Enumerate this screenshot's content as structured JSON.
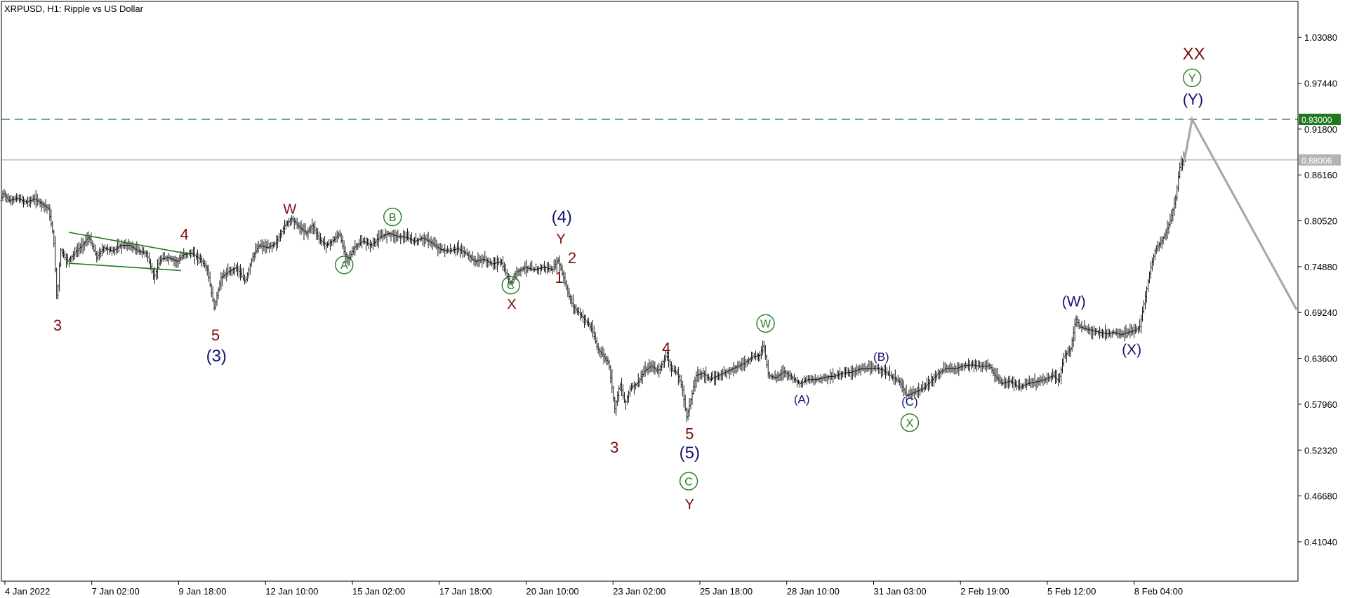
{
  "chart_data": {
    "type": "ohlc",
    "title": "XRPUSD, H1:  Ripple vs US Dollar",
    "symbol": "XRPUSD",
    "timeframe": "H1",
    "instrument": "Ripple vs US Dollar",
    "ylim": [
      0.362,
      1.075
    ],
    "y_ticks": [
      "1.03080",
      "0.97440",
      "0.91800",
      "0.86160",
      "0.80520",
      "0.74880",
      "0.69240",
      "0.63600",
      "0.57960",
      "0.52320",
      "0.46680",
      "0.41040"
    ],
    "x_ticks": [
      "4 Jan 2022",
      "7 Jan 02:00",
      "9 Jan 18:00",
      "12 Jan 10:00",
      "15 Jan 02:00",
      "17 Jan 18:00",
      "20 Jan 10:00",
      "23 Jan 02:00",
      "25 Jan 18:00",
      "28 Jan 10:00",
      "31 Jan 03:00",
      "2 Feb 19:00",
      "5 Feb 12:00",
      "8 Feb 04:00"
    ],
    "levels": [
      {
        "name": "target",
        "value": 0.93,
        "label": "0.93000",
        "style": "dashed",
        "color": "#1f7a1f"
      },
      {
        "name": "current",
        "value": 0.88006,
        "label": "0.88006",
        "style": "solid",
        "color": "#b4b4b4"
      }
    ],
    "price_path": [
      [
        0,
        0.83
      ],
      [
        4,
        0.84
      ],
      [
        10,
        0.83
      ],
      [
        20,
        0.833
      ],
      [
        30,
        0.828
      ],
      [
        40,
        0.832
      ],
      [
        50,
        0.825
      ],
      [
        56,
        0.82
      ],
      [
        62,
        0.785
      ],
      [
        66,
        0.705
      ],
      [
        70,
        0.77
      ],
      [
        78,
        0.755
      ],
      [
        86,
        0.765
      ],
      [
        95,
        0.775
      ],
      [
        103,
        0.785
      ],
      [
        112,
        0.76
      ],
      [
        120,
        0.772
      ],
      [
        130,
        0.768
      ],
      [
        140,
        0.775
      ],
      [
        150,
        0.775
      ],
      [
        160,
        0.768
      ],
      [
        170,
        0.765
      ],
      [
        178,
        0.735
      ],
      [
        186,
        0.758
      ],
      [
        195,
        0.76
      ],
      [
        205,
        0.755
      ],
      [
        213,
        0.764
      ],
      [
        222,
        0.765
      ],
      [
        232,
        0.758
      ],
      [
        240,
        0.745
      ],
      [
        248,
        0.698
      ],
      [
        256,
        0.735
      ],
      [
        264,
        0.742
      ],
      [
        274,
        0.748
      ],
      [
        284,
        0.73
      ],
      [
        292,
        0.76
      ],
      [
        300,
        0.775
      ],
      [
        310,
        0.772
      ],
      [
        320,
        0.778
      ],
      [
        330,
        0.8
      ],
      [
        338,
        0.808
      ],
      [
        346,
        0.798
      ],
      [
        355,
        0.79
      ],
      [
        362,
        0.8
      ],
      [
        370,
        0.782
      ],
      [
        378,
        0.775
      ],
      [
        387,
        0.782
      ],
      [
        393,
        0.79
      ],
      [
        399,
        0.765
      ],
      [
        404,
        0.758
      ],
      [
        410,
        0.772
      ],
      [
        420,
        0.78
      ],
      [
        430,
        0.775
      ],
      [
        440,
        0.785
      ],
      [
        450,
        0.79
      ],
      [
        460,
        0.786
      ],
      [
        470,
        0.785
      ],
      [
        480,
        0.78
      ],
      [
        490,
        0.784
      ],
      [
        500,
        0.778
      ],
      [
        510,
        0.77
      ],
      [
        520,
        0.768
      ],
      [
        530,
        0.771
      ],
      [
        540,
        0.765
      ],
      [
        550,
        0.755
      ],
      [
        560,
        0.758
      ],
      [
        570,
        0.752
      ],
      [
        580,
        0.755
      ],
      [
        586,
        0.74
      ],
      [
        591,
        0.728
      ],
      [
        598,
        0.742
      ],
      [
        608,
        0.748
      ],
      [
        618,
        0.745
      ],
      [
        630,
        0.748
      ],
      [
        640,
        0.745
      ],
      [
        646,
        0.758
      ],
      [
        652,
        0.738
      ],
      [
        658,
        0.715
      ],
      [
        664,
        0.7
      ],
      [
        672,
        0.69
      ],
      [
        680,
        0.68
      ],
      [
        686,
        0.67
      ],
      [
        692,
        0.648
      ],
      [
        698,
        0.64
      ],
      [
        705,
        0.63
      ],
      [
        712,
        0.574
      ],
      [
        718,
        0.605
      ],
      [
        724,
        0.58
      ],
      [
        730,
        0.6
      ],
      [
        738,
        0.605
      ],
      [
        746,
        0.62
      ],
      [
        754,
        0.627
      ],
      [
        762,
        0.62
      ],
      [
        772,
        0.64
      ],
      [
        778,
        0.622
      ],
      [
        784,
        0.618
      ],
      [
        790,
        0.6
      ],
      [
        795,
        0.563
      ],
      [
        800,
        0.585
      ],
      [
        806,
        0.615
      ],
      [
        814,
        0.618
      ],
      [
        822,
        0.61
      ],
      [
        832,
        0.615
      ],
      [
        842,
        0.62
      ],
      [
        852,
        0.625
      ],
      [
        862,
        0.63
      ],
      [
        872,
        0.638
      ],
      [
        880,
        0.64
      ],
      [
        884,
        0.654
      ],
      [
        890,
        0.615
      ],
      [
        898,
        0.612
      ],
      [
        908,
        0.62
      ],
      [
        918,
        0.612
      ],
      [
        926,
        0.605
      ],
      [
        936,
        0.61
      ],
      [
        946,
        0.61
      ],
      [
        956,
        0.613
      ],
      [
        966,
        0.614
      ],
      [
        976,
        0.618
      ],
      [
        986,
        0.619
      ],
      [
        996,
        0.623
      ],
      [
        1006,
        0.623
      ],
      [
        1014,
        0.624
      ],
      [
        1022,
        0.622
      ],
      [
        1032,
        0.614
      ],
      [
        1042,
        0.607
      ],
      [
        1050,
        0.59
      ],
      [
        1058,
        0.594
      ],
      [
        1068,
        0.598
      ],
      [
        1076,
        0.606
      ],
      [
        1086,
        0.617
      ],
      [
        1096,
        0.624
      ],
      [
        1106,
        0.623
      ],
      [
        1116,
        0.627
      ],
      [
        1126,
        0.628
      ],
      [
        1136,
        0.626
      ],
      [
        1146,
        0.627
      ],
      [
        1152,
        0.615
      ],
      [
        1160,
        0.605
      ],
      [
        1170,
        0.608
      ],
      [
        1180,
        0.6
      ],
      [
        1190,
        0.605
      ],
      [
        1200,
        0.607
      ],
      [
        1210,
        0.61
      ],
      [
        1220,
        0.615
      ],
      [
        1226,
        0.608
      ],
      [
        1232,
        0.638
      ],
      [
        1240,
        0.648
      ],
      [
        1246,
        0.685
      ],
      [
        1250,
        0.675
      ],
      [
        1258,
        0.672
      ],
      [
        1266,
        0.67
      ],
      [
        1274,
        0.668
      ],
      [
        1282,
        0.666
      ],
      [
        1290,
        0.668
      ],
      [
        1298,
        0.665
      ],
      [
        1306,
        0.668
      ],
      [
        1314,
        0.67
      ],
      [
        1320,
        0.675
      ],
      [
        1326,
        0.71
      ],
      [
        1332,
        0.745
      ],
      [
        1338,
        0.77
      ],
      [
        1344,
        0.778
      ],
      [
        1350,
        0.79
      ],
      [
        1356,
        0.808
      ],
      [
        1362,
        0.835
      ],
      [
        1366,
        0.87
      ],
      [
        1372,
        0.885
      ]
    ],
    "channel_lines": [
      {
        "from": [
          78,
          0.791
        ],
        "to": [
          214,
          0.765
        ]
      },
      {
        "from": [
          78,
          0.753
        ],
        "to": [
          208,
          0.744
        ]
      }
    ],
    "forecast": [
      [
        1370,
        0.879
      ],
      [
        1379,
        0.93
      ],
      [
        1500,
        0.696
      ]
    ],
    "annotations": [
      {
        "text": "3",
        "x": 65,
        "y": 0.67,
        "color": "maroon",
        "size": 22
      },
      {
        "text": "4",
        "x": 212,
        "y": 0.782,
        "color": "maroon",
        "size": 22
      },
      {
        "text": "5",
        "x": 248,
        "y": 0.658,
        "color": "maroon",
        "size": 22
      },
      {
        "text": "(3)",
        "x": 249,
        "y": 0.632,
        "color": "navy",
        "size": 24
      },
      {
        "text": "W",
        "x": 334,
        "y": 0.814,
        "color": "maroon",
        "size": 20
      },
      {
        "text": "A",
        "x": 397,
        "y": 0.746,
        "color": "green",
        "size": 16,
        "circled": true
      },
      {
        "text": "B",
        "x": 453,
        "y": 0.805,
        "color": "green",
        "size": 16,
        "circled": true
      },
      {
        "text": "C",
        "x": 590,
        "y": 0.721,
        "color": "green",
        "size": 16,
        "circled": true
      },
      {
        "text": "X",
        "x": 591,
        "y": 0.697,
        "color": "maroon",
        "size": 20
      },
      {
        "text": "(4)",
        "x": 649,
        "y": 0.803,
        "color": "navy",
        "size": 24
      },
      {
        "text": "Y",
        "x": 648,
        "y": 0.777,
        "color": "maroon",
        "size": 20
      },
      {
        "text": "2",
        "x": 661,
        "y": 0.753,
        "color": "maroon",
        "size": 22
      },
      {
        "text": "1",
        "x": 646,
        "y": 0.729,
        "color": "maroon",
        "size": 22
      },
      {
        "text": "3",
        "x": 710,
        "y": 0.52,
        "color": "maroon",
        "size": 22
      },
      {
        "text": "4",
        "x": 770,
        "y": 0.642,
        "color": "maroon",
        "size": 22
      },
      {
        "text": "5",
        "x": 797,
        "y": 0.537,
        "color": "maroon",
        "size": 22
      },
      {
        "text": "(5)",
        "x": 797,
        "y": 0.513,
        "color": "navy",
        "size": 24
      },
      {
        "text": "C",
        "x": 796,
        "y": 0.48,
        "color": "green",
        "size": 16,
        "circled": true
      },
      {
        "text": "Y",
        "x": 797,
        "y": 0.451,
        "color": "maroon",
        "size": 20
      },
      {
        "text": "W",
        "x": 885,
        "y": 0.674,
        "color": "green",
        "size": 16,
        "circled": true
      },
      {
        "text": "(A)",
        "x": 927,
        "y": 0.581,
        "color": "navy",
        "size": 17
      },
      {
        "text": "(B)",
        "x": 1019,
        "y": 0.633,
        "color": "navy",
        "size": 17
      },
      {
        "text": "(C)",
        "x": 1052,
        "y": 0.578,
        "color": "navy",
        "size": 17
      },
      {
        "text": "X",
        "x": 1052,
        "y": 0.552,
        "color": "green",
        "size": 16,
        "circled": true
      },
      {
        "text": "(W)",
        "x": 1242,
        "y": 0.7,
        "color": "navy",
        "size": 21
      },
      {
        "text": "(X)",
        "x": 1309,
        "y": 0.641,
        "color": "navy",
        "size": 21
      },
      {
        "text": "XX",
        "x": 1381,
        "y": 1.004,
        "color": "maroon",
        "size": 24
      },
      {
        "text": "Y",
        "x": 1379,
        "y": 0.976,
        "color": "green",
        "size": 16,
        "circled": true
      },
      {
        "text": "(Y)",
        "x": 1380,
        "y": 0.948,
        "color": "navy",
        "size": 22
      }
    ],
    "colors": {
      "bars": "#000000",
      "target_line": "#1f7a1f",
      "current_line": "#b4b4b4",
      "forecast": "#a9a9a9",
      "channel": "#1f7a1f",
      "maroon": "#7a0d0d",
      "navy": "#141470",
      "green": "#1f7a1f"
    }
  }
}
